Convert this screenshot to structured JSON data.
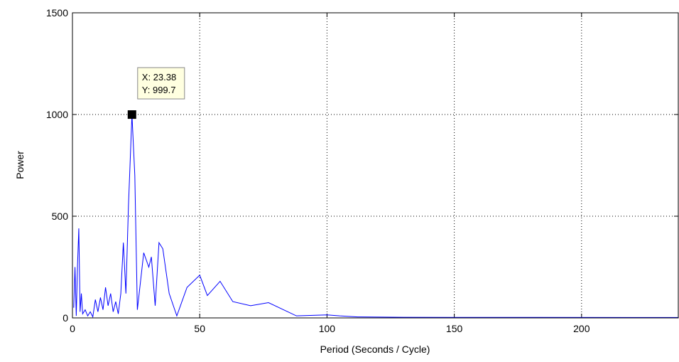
{
  "chart_data": {
    "type": "line",
    "x_label": "Period (Seconds / Cycle)",
    "y_label": "Power",
    "xlim": [
      0,
      238
    ],
    "ylim": [
      0,
      1500
    ],
    "xticks": [
      0,
      50,
      100,
      150,
      200
    ],
    "yticks": [
      0,
      500,
      1000,
      1500
    ],
    "grid": true,
    "series": [
      {
        "name": "Power",
        "color": "#0000ff",
        "x": [
          0.5,
          1,
          1.5,
          2,
          2.5,
          3,
          3.5,
          4,
          5,
          6,
          7,
          8,
          9,
          10,
          11,
          12,
          13,
          14,
          15,
          16,
          17,
          18,
          19,
          20,
          21,
          22,
          23.38,
          24.5,
          25.5,
          28,
          30,
          31,
          32.5,
          34,
          35.5,
          38,
          41,
          45,
          50,
          53,
          58,
          63,
          70,
          77,
          88,
          100,
          105,
          112,
          130,
          238
        ],
        "values": [
          50,
          250,
          10,
          260,
          440,
          30,
          120,
          20,
          40,
          10,
          30,
          5,
          90,
          30,
          100,
          40,
          150,
          60,
          120,
          30,
          80,
          20,
          120,
          370,
          120,
          550,
          999.7,
          700,
          40,
          320,
          250,
          300,
          60,
          370,
          340,
          120,
          10,
          150,
          210,
          110,
          180,
          80,
          60,
          75,
          10,
          15,
          10,
          5,
          3,
          2
        ]
      }
    ],
    "datatip": {
      "x": 23.38,
      "y": 999.7,
      "x_text": "X: 23.38",
      "y_text": "Y: 999.7"
    }
  }
}
